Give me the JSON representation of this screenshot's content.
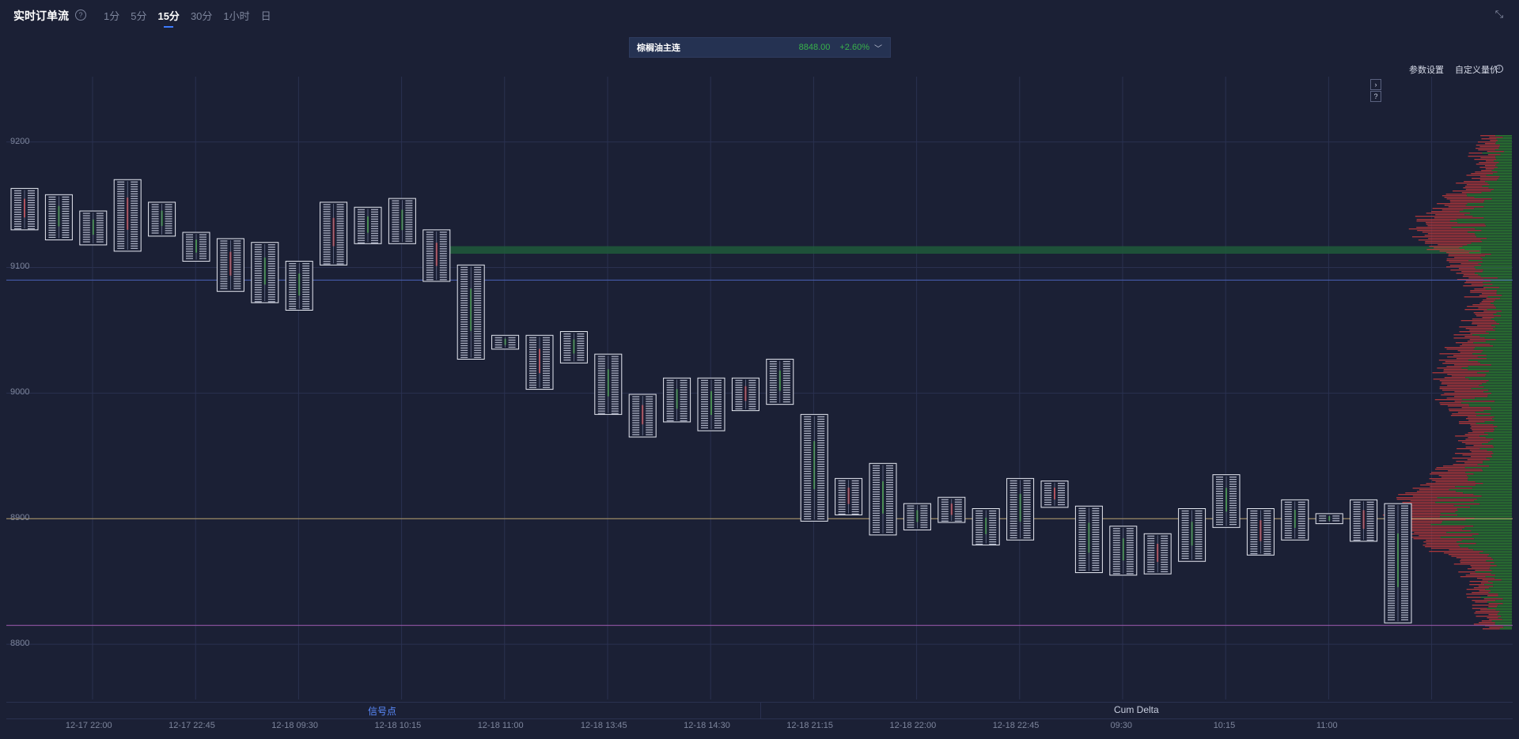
{
  "header": {
    "title": "实时订单流",
    "help_icon": "question-circle-icon",
    "tabs": [
      {
        "label": "1分",
        "active": false
      },
      {
        "label": "5分",
        "active": false
      },
      {
        "label": "15分",
        "active": true
      },
      {
        "label": "30分",
        "active": false
      },
      {
        "label": "1小时",
        "active": false
      },
      {
        "label": "日",
        "active": false
      }
    ],
    "collapse_icon": "collapse-arrows-icon"
  },
  "symbol": {
    "name": "棕榈油主连",
    "price": "8848.00",
    "change": "+2.60%",
    "dropdown_icon": "chevron-down-icon"
  },
  "toolbar": {
    "params_label": "参数设置",
    "custom_label": "自定义量价",
    "info_icon": "info-circle-icon",
    "expand_icon": "chevron-right-icon",
    "help_icon": "question-mark-icon"
  },
  "bottom": {
    "left_tab": "信号点",
    "right_tab": "Cum Delta"
  },
  "colors": {
    "background": "#1b2035",
    "up": "#2e8b2e",
    "down": "#c0393b",
    "poc_band": "#1f5a3a",
    "line_blue": "#4a62b8",
    "line_gold": "#b8a06a",
    "line_purple": "#a05ab0",
    "accent": "#3d7bff"
  },
  "chart_data": {
    "type": "candlestick-footprint",
    "y_ticks": [
      "9200",
      "9100",
      "9000",
      "8900",
      "8800"
    ],
    "ylim": [
      8756,
      9252
    ],
    "x_labels": [
      "12-17 22:00",
      "12-17 22:45",
      "12-18 09:30",
      "12-18 10:15",
      "12-18 11:00",
      "12-18 13:45",
      "12-18 14:30",
      "12-18 21:15",
      "12-18 22:00",
      "12-18 22:45",
      "09:30",
      "10:15",
      "11:00"
    ],
    "grid": true,
    "horizontal_lines": [
      {
        "name": "blue-level",
        "price": 9090,
        "color": "#4a62b8"
      },
      {
        "name": "gold-level",
        "price": 8900,
        "color": "#b8a06a"
      },
      {
        "name": "purple-level",
        "price": 8815,
        "color": "#a05ab0"
      }
    ],
    "poc_band": [
      9117,
      9111
    ],
    "bars": [
      [
        9163,
        9130
      ],
      [
        9158,
        9122
      ],
      [
        9145,
        9118
      ],
      [
        9170,
        9113
      ],
      [
        9152,
        9125
      ],
      [
        9128,
        9105
      ],
      [
        9123,
        9081
      ],
      [
        9120,
        9072
      ],
      [
        9105,
        9066
      ],
      [
        9152,
        9102
      ],
      [
        9148,
        9119
      ],
      [
        9155,
        9119
      ],
      [
        9130,
        9089
      ],
      [
        9102,
        9027
      ],
      [
        9046,
        9035
      ],
      [
        9046,
        9003
      ],
      [
        9049,
        9024
      ],
      [
        9031,
        8983
      ],
      [
        8999,
        8965
      ],
      [
        9012,
        8977
      ],
      [
        9012,
        8970
      ],
      [
        9012,
        8986
      ],
      [
        9027,
        8991
      ],
      [
        8983,
        8898
      ],
      [
        8932,
        8903
      ],
      [
        8944,
        8887
      ],
      [
        8912,
        8891
      ],
      [
        8917,
        8897
      ],
      [
        8908,
        8879
      ],
      [
        8932,
        8883
      ],
      [
        8930,
        8909
      ],
      [
        8910,
        8857
      ],
      [
        8894,
        8855
      ],
      [
        8888,
        8856
      ],
      [
        8908,
        8866
      ],
      [
        8935,
        8893
      ],
      [
        8908,
        8871
      ],
      [
        8915,
        8883
      ],
      [
        8904,
        8896
      ],
      [
        8915,
        8882
      ],
      [
        8912,
        8817
      ]
    ],
    "volume_profile_side": "right"
  }
}
